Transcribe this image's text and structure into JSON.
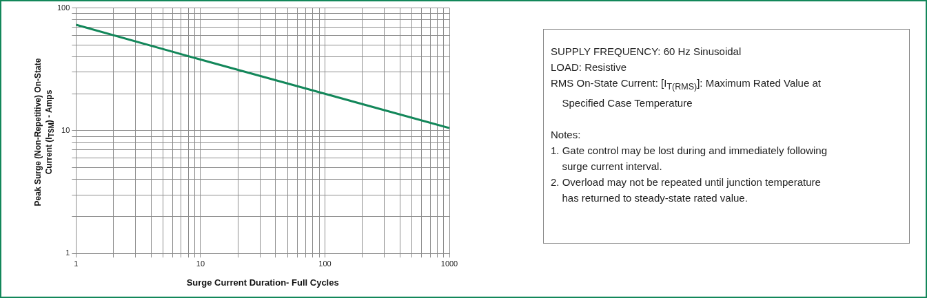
{
  "chart_data": {
    "type": "line",
    "xlabel": "Surge Current Duration- Full Cycles",
    "ylabel": "Peak Surge (Non-Repetitive) On-State Current (I$_{TSM}$) - Amps",
    "x": [
      1,
      10,
      100,
      1000
    ],
    "series": [
      {
        "color": "#13875a",
        "values": [
          73,
          38,
          20,
          10.5
        ]
      }
    ],
    "xlim": [
      1,
      1000
    ],
    "xticks": [
      1,
      10,
      100,
      1000
    ],
    "ylim": [
      1,
      100
    ],
    "yticks": [
      1,
      10,
      100
    ],
    "log": "xy",
    "grid": true,
    "legend": false,
    "marker": "none",
    "line_style": "solid",
    "annotations": [
      "SUPPLY FREQUENCY: 60 Hz Sinusoidal",
      "LOAD: Resistive",
      "RMS On-State Current: [I$_{T(RMS)}$]: Maximum Rated Value at Specified Case Temperature",
      "Notes:",
      "1. Gate control may be lost during and immediately following surge current interval.",
      "2. Overload may not be repeated until junction temperature has returned to steady-state rated value."
    ]
  }
}
